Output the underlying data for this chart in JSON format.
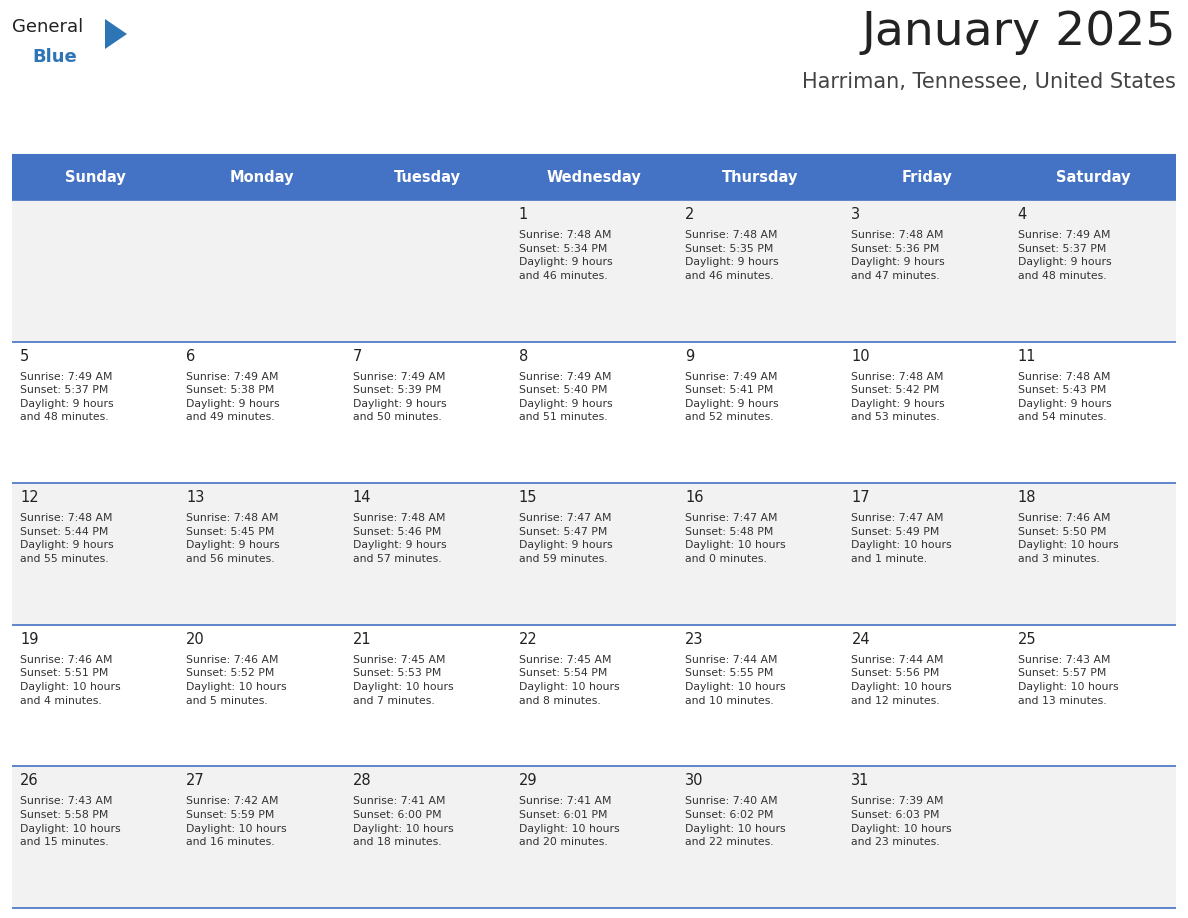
{
  "title": "January 2025",
  "subtitle": "Harriman, Tennessee, United States",
  "title_color": "#222222",
  "subtitle_color": "#444444",
  "header_bg_color": "#4472C4",
  "header_text_color": "#FFFFFF",
  "row_bg_colors": [
    "#F2F2F2",
    "#FFFFFF"
  ],
  "cell_border_color": "#4472C4",
  "day_number_color": "#222222",
  "cell_text_color": "#333333",
  "days_of_week": [
    "Sunday",
    "Monday",
    "Tuesday",
    "Wednesday",
    "Thursday",
    "Friday",
    "Saturday"
  ],
  "calendar_data": [
    [
      "",
      "",
      "",
      "1\nSunrise: 7:48 AM\nSunset: 5:34 PM\nDaylight: 9 hours\nand 46 minutes.",
      "2\nSunrise: 7:48 AM\nSunset: 5:35 PM\nDaylight: 9 hours\nand 46 minutes.",
      "3\nSunrise: 7:48 AM\nSunset: 5:36 PM\nDaylight: 9 hours\nand 47 minutes.",
      "4\nSunrise: 7:49 AM\nSunset: 5:37 PM\nDaylight: 9 hours\nand 48 minutes."
    ],
    [
      "5\nSunrise: 7:49 AM\nSunset: 5:37 PM\nDaylight: 9 hours\nand 48 minutes.",
      "6\nSunrise: 7:49 AM\nSunset: 5:38 PM\nDaylight: 9 hours\nand 49 minutes.",
      "7\nSunrise: 7:49 AM\nSunset: 5:39 PM\nDaylight: 9 hours\nand 50 minutes.",
      "8\nSunrise: 7:49 AM\nSunset: 5:40 PM\nDaylight: 9 hours\nand 51 minutes.",
      "9\nSunrise: 7:49 AM\nSunset: 5:41 PM\nDaylight: 9 hours\nand 52 minutes.",
      "10\nSunrise: 7:48 AM\nSunset: 5:42 PM\nDaylight: 9 hours\nand 53 minutes.",
      "11\nSunrise: 7:48 AM\nSunset: 5:43 PM\nDaylight: 9 hours\nand 54 minutes."
    ],
    [
      "12\nSunrise: 7:48 AM\nSunset: 5:44 PM\nDaylight: 9 hours\nand 55 minutes.",
      "13\nSunrise: 7:48 AM\nSunset: 5:45 PM\nDaylight: 9 hours\nand 56 minutes.",
      "14\nSunrise: 7:48 AM\nSunset: 5:46 PM\nDaylight: 9 hours\nand 57 minutes.",
      "15\nSunrise: 7:47 AM\nSunset: 5:47 PM\nDaylight: 9 hours\nand 59 minutes.",
      "16\nSunrise: 7:47 AM\nSunset: 5:48 PM\nDaylight: 10 hours\nand 0 minutes.",
      "17\nSunrise: 7:47 AM\nSunset: 5:49 PM\nDaylight: 10 hours\nand 1 minute.",
      "18\nSunrise: 7:46 AM\nSunset: 5:50 PM\nDaylight: 10 hours\nand 3 minutes."
    ],
    [
      "19\nSunrise: 7:46 AM\nSunset: 5:51 PM\nDaylight: 10 hours\nand 4 minutes.",
      "20\nSunrise: 7:46 AM\nSunset: 5:52 PM\nDaylight: 10 hours\nand 5 minutes.",
      "21\nSunrise: 7:45 AM\nSunset: 5:53 PM\nDaylight: 10 hours\nand 7 minutes.",
      "22\nSunrise: 7:45 AM\nSunset: 5:54 PM\nDaylight: 10 hours\nand 8 minutes.",
      "23\nSunrise: 7:44 AM\nSunset: 5:55 PM\nDaylight: 10 hours\nand 10 minutes.",
      "24\nSunrise: 7:44 AM\nSunset: 5:56 PM\nDaylight: 10 hours\nand 12 minutes.",
      "25\nSunrise: 7:43 AM\nSunset: 5:57 PM\nDaylight: 10 hours\nand 13 minutes."
    ],
    [
      "26\nSunrise: 7:43 AM\nSunset: 5:58 PM\nDaylight: 10 hours\nand 15 minutes.",
      "27\nSunrise: 7:42 AM\nSunset: 5:59 PM\nDaylight: 10 hours\nand 16 minutes.",
      "28\nSunrise: 7:41 AM\nSunset: 6:00 PM\nDaylight: 10 hours\nand 18 minutes.",
      "29\nSunrise: 7:41 AM\nSunset: 6:01 PM\nDaylight: 10 hours\nand 20 minutes.",
      "30\nSunrise: 7:40 AM\nSunset: 6:02 PM\nDaylight: 10 hours\nand 22 minutes.",
      "31\nSunrise: 7:39 AM\nSunset: 6:03 PM\nDaylight: 10 hours\nand 23 minutes.",
      ""
    ]
  ],
  "logo_text_general": "General",
  "logo_text_blue": "Blue",
  "logo_general_color": "#222222",
  "logo_blue_color": "#2E75B6",
  "logo_triangle_color": "#2E75B6",
  "fig_width": 11.88,
  "fig_height": 9.18,
  "dpi": 100
}
